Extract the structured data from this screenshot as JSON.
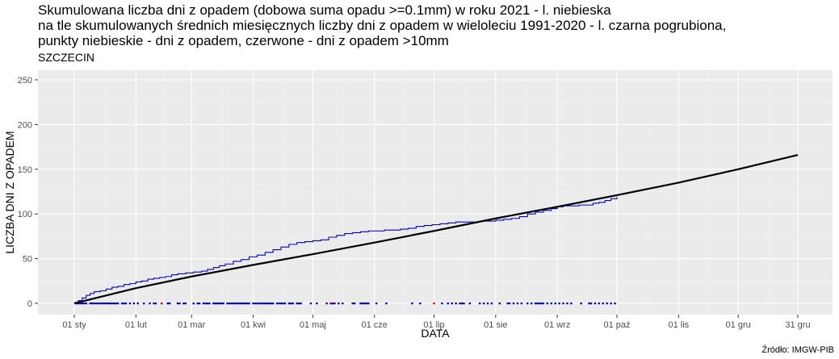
{
  "title_lines": [
    "Skumulowana liczba dni z opadem (dobowa suma opadu >=0.1mm) w roku 2021 - l. niebieska",
    "na tle skumulowanych średnich miesięcznych liczby dni z opadem w wieloleciu 1991-2020 - l. czarna pogrubiona,",
    "punkty niebieskie - dni z opadem, czerwone - dni z opadem >10mm"
  ],
  "subtitle": "SZCZECIN",
  "caption": "Źródło: IMGW-PIB",
  "colors": {
    "panel": "#ebebeb",
    "grid_major": "#ffffff",
    "observed": "#0000cc",
    "normal": "#000000",
    "heavy": "#cc0000"
  },
  "chart_data": {
    "type": "line",
    "xlabel": "DATA",
    "ylabel": "LICZBA DNI Z OPADEM",
    "ylim": [
      0,
      250
    ],
    "y_ticks": [
      0,
      50,
      100,
      150,
      200,
      250
    ],
    "x_ticks": [
      {
        "day": 0,
        "label": "01 sty"
      },
      {
        "day": 31,
        "label": "01 lut"
      },
      {
        "day": 59,
        "label": "01 mar"
      },
      {
        "day": 90,
        "label": "01 kwi"
      },
      {
        "day": 120,
        "label": "01 maj"
      },
      {
        "day": 151,
        "label": "01 cze"
      },
      {
        "day": 181,
        "label": "01 lip"
      },
      {
        "day": 212,
        "label": "01 sie"
      },
      {
        "day": 243,
        "label": "01 wrz"
      },
      {
        "day": 273,
        "label": "01 paź"
      },
      {
        "day": 304,
        "label": "01 lis"
      },
      {
        "day": 334,
        "label": "01 gru"
      },
      {
        "day": 364,
        "label": "31 gru"
      }
    ],
    "grid": true,
    "series": [
      {
        "key": "normal",
        "points": [
          [
            0,
            0
          ],
          [
            31,
            17
          ],
          [
            59,
            30
          ],
          [
            90,
            43
          ],
          [
            120,
            55
          ],
          [
            151,
            68
          ],
          [
            181,
            81
          ],
          [
            212,
            95
          ],
          [
            243,
            108
          ],
          [
            273,
            121
          ],
          [
            304,
            135
          ],
          [
            334,
            150
          ],
          [
            364,
            166
          ]
        ]
      },
      {
        "key": "observed",
        "points": [
          [
            0,
            0
          ],
          [
            2,
            3
          ],
          [
            4,
            6
          ],
          [
            6,
            9
          ],
          [
            8,
            11
          ],
          [
            10,
            13
          ],
          [
            13,
            14
          ],
          [
            16,
            16
          ],
          [
            19,
            18
          ],
          [
            22,
            19
          ],
          [
            25,
            21
          ],
          [
            28,
            22
          ],
          [
            31,
            24
          ],
          [
            34,
            25
          ],
          [
            37,
            27
          ],
          [
            40,
            28
          ],
          [
            43,
            29
          ],
          [
            46,
            30
          ],
          [
            49,
            32
          ],
          [
            52,
            33
          ],
          [
            56,
            34
          ],
          [
            60,
            35
          ],
          [
            64,
            36
          ],
          [
            67,
            38
          ],
          [
            70,
            40
          ],
          [
            73,
            42
          ],
          [
            76,
            44
          ],
          [
            80,
            47
          ],
          [
            84,
            49
          ],
          [
            88,
            52
          ],
          [
            92,
            54
          ],
          [
            96,
            57
          ],
          [
            100,
            60
          ],
          [
            104,
            63
          ],
          [
            108,
            66
          ],
          [
            112,
            68
          ],
          [
            116,
            69
          ],
          [
            120,
            70
          ],
          [
            124,
            71
          ],
          [
            128,
            74
          ],
          [
            132,
            76
          ],
          [
            136,
            78
          ],
          [
            140,
            79
          ],
          [
            144,
            80
          ],
          [
            148,
            81
          ],
          [
            152,
            81
          ],
          [
            156,
            82
          ],
          [
            160,
            82
          ],
          [
            164,
            83
          ],
          [
            168,
            84
          ],
          [
            172,
            86
          ],
          [
            176,
            87
          ],
          [
            180,
            88
          ],
          [
            184,
            89
          ],
          [
            188,
            90
          ],
          [
            192,
            91
          ],
          [
            196,
            91
          ],
          [
            200,
            91
          ],
          [
            204,
            92
          ],
          [
            208,
            92
          ],
          [
            212,
            93
          ],
          [
            216,
            94
          ],
          [
            220,
            95
          ],
          [
            224,
            97
          ],
          [
            228,
            100
          ],
          [
            232,
            102
          ],
          [
            236,
            104
          ],
          [
            240,
            106
          ],
          [
            243,
            108
          ],
          [
            246,
            109
          ],
          [
            250,
            109
          ],
          [
            254,
            110
          ],
          [
            258,
            110
          ],
          [
            261,
            112
          ],
          [
            264,
            113
          ],
          [
            267,
            115
          ],
          [
            270,
            117
          ],
          [
            273,
            119
          ]
        ]
      }
    ],
    "rain_days": [
      1,
      2,
      3,
      4,
      5,
      6,
      8,
      9,
      10,
      11,
      12,
      13,
      14,
      15,
      16,
      17,
      18,
      19,
      20,
      21,
      22,
      24,
      25,
      26,
      28,
      30,
      32,
      35,
      38,
      40,
      41,
      44,
      47,
      48,
      52,
      53,
      55,
      56,
      60,
      62,
      63,
      65,
      66,
      67,
      68,
      70,
      71,
      72,
      73,
      74,
      75,
      77,
      78,
      79,
      80,
      81,
      82,
      83,
      84,
      85,
      86,
      87,
      88,
      90,
      91,
      92,
      93,
      94,
      95,
      96,
      97,
      98,
      99,
      100,
      102,
      103,
      104,
      105,
      106,
      108,
      109,
      110,
      112,
      113,
      114,
      119,
      122,
      127,
      129,
      130,
      131,
      133,
      135,
      140,
      141,
      144,
      145,
      146,
      147,
      148,
      152,
      157,
      170,
      174,
      185,
      188,
      190,
      192,
      194,
      195,
      196,
      199,
      204,
      206,
      208,
      210,
      214,
      218,
      219,
      221,
      223,
      225,
      228,
      230,
      232,
      233,
      234,
      235,
      236,
      238,
      240,
      242,
      244,
      246,
      248,
      250,
      255,
      259,
      260,
      262,
      264,
      266,
      268,
      270,
      272
    ],
    "heavy_rain_days": [
      44,
      129,
      181
    ]
  }
}
